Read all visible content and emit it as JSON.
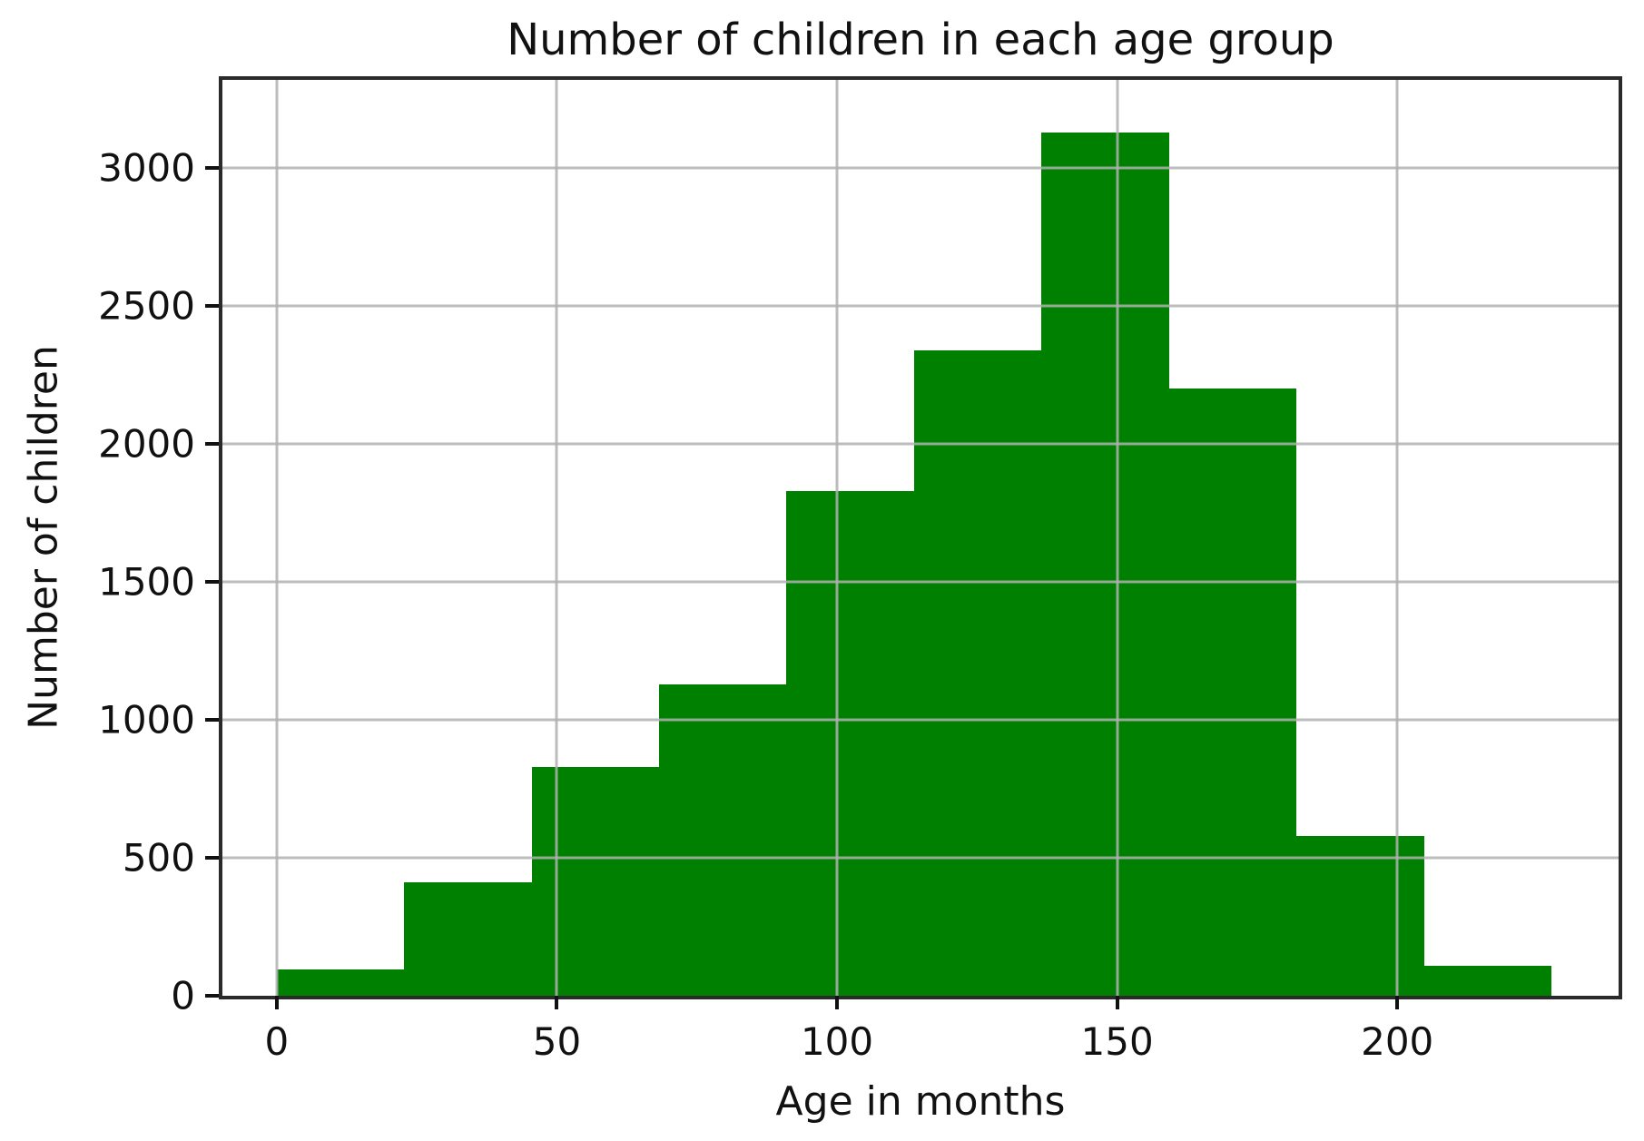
{
  "figure": {
    "title": "Number of children in each age group",
    "xlabel": "Age in months",
    "ylabel": "Number of children"
  },
  "chart_data": {
    "type": "bar",
    "subtype": "histogram",
    "title": "Number of children in each age group",
    "xlabel": "Age in months",
    "ylabel": "Number of children",
    "bin_edges": [
      0,
      22.75,
      45.5,
      68.25,
      91,
      113.75,
      136.5,
      159.25,
      182,
      204.75,
      227.5
    ],
    "counts": [
      95,
      410,
      830,
      1130,
      1830,
      2340,
      3130,
      2200,
      580,
      110
    ],
    "x_ticks": [
      0,
      50,
      100,
      150,
      200
    ],
    "y_ticks": [
      0,
      500,
      1000,
      1500,
      2000,
      2500,
      3000
    ],
    "xlim": [
      -9.7,
      239.5
    ],
    "ylim": [
      0,
      3320
    ],
    "grid": true,
    "legend": null,
    "colors": {
      "bar": "#008000",
      "gridline": "#b0b0b0",
      "spine": "#2a2a2a",
      "text": "#111111",
      "background": "#ffffff"
    }
  }
}
